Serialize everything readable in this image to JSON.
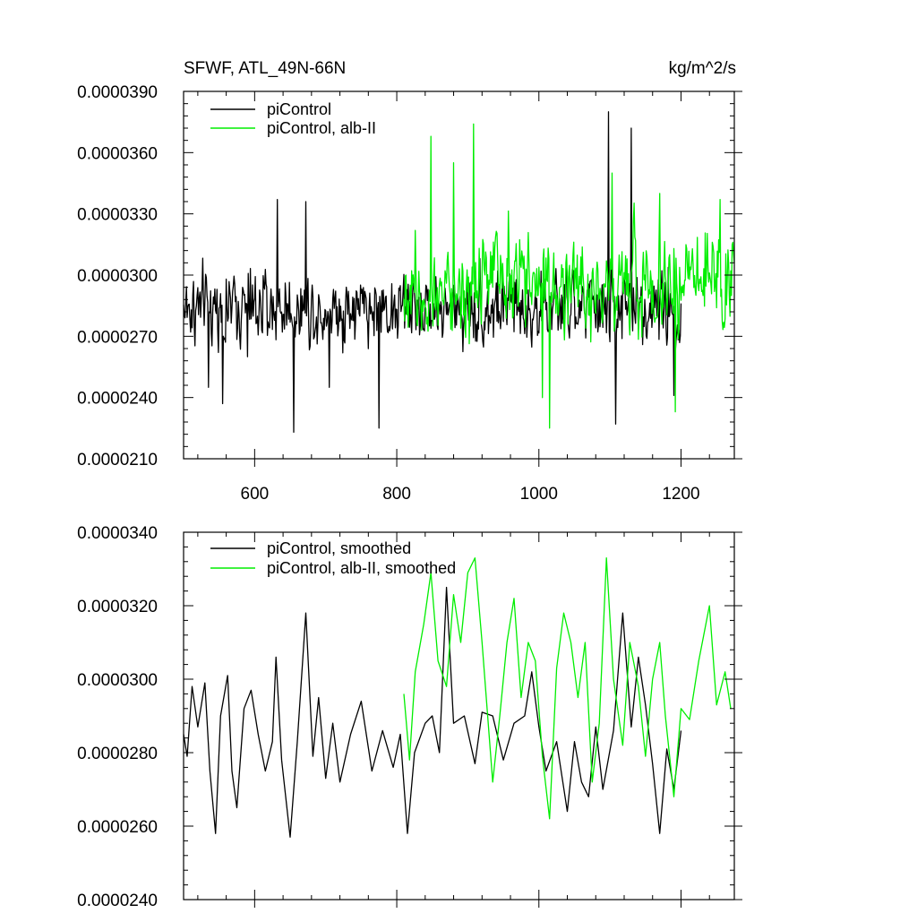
{
  "chart_data": [
    {
      "type": "line",
      "title": "SFWF, ATL_49N-66N",
      "units": "kg/m^2/s",
      "xlim": [
        500,
        1275
      ],
      "ylim": [
        2.1e-05,
        3.9e-05
      ],
      "x_ticks": [
        600,
        800,
        1000,
        1200
      ],
      "x_tick_labels": [
        "600",
        "800",
        "1000",
        "1200"
      ],
      "y_ticks": [
        2.1e-05,
        2.4e-05,
        2.7e-05,
        3e-05,
        3.3e-05,
        3.6e-05,
        3.9e-05
      ],
      "y_tick_labels": [
        "0.0000210",
        "0.0000240",
        "0.0000270",
        "0.0000300",
        "0.0000330",
        "0.0000360",
        "0.0000390"
      ],
      "grid": false,
      "legend_position": "top-left",
      "series": [
        {
          "name": "piControl",
          "color": "#000000",
          "x_start": 500,
          "x_end": 1200,
          "mean": 2.84e-05,
          "amplitude": 2.2e-06,
          "extremes": [
            [
              535,
              2.45e-05
            ],
            [
              555,
              2.37e-05
            ],
            [
              590,
              2.6e-05
            ],
            [
              632,
              3.37e-05
            ],
            [
              655,
              2.23e-05
            ],
            [
              672,
              3.36e-05
            ],
            [
              705,
              2.45e-05
            ],
            [
              775,
              2.25e-05
            ],
            [
              1098,
              3.8e-05
            ],
            [
              1108,
              2.27e-05
            ],
            [
              1130,
              3.72e-05
            ],
            [
              1190,
              2.41e-05
            ]
          ]
        },
        {
          "name": "piControl, alb-II",
          "color": "#00ee00",
          "x_start": 810,
          "x_end": 1275,
          "mean": 2.96e-05,
          "amplitude": 2.8e-06,
          "extremes": [
            [
              848,
              3.68e-05
            ],
            [
              880,
              3.55e-05
            ],
            [
              908,
              3.74e-05
            ],
            [
              1005,
              2.4e-05
            ],
            [
              1015,
              2.25e-05
            ],
            [
              1103,
              3.5e-05
            ],
            [
              1170,
              3.4e-05
            ],
            [
              1192,
              2.33e-05
            ],
            [
              1255,
              3.37e-05
            ]
          ]
        }
      ]
    },
    {
      "type": "line",
      "title": "",
      "xlim": [
        500,
        1275
      ],
      "ylim": [
        2.4e-05,
        3.4e-05
      ],
      "x_ticks": [
        600,
        800,
        1000,
        1200
      ],
      "x_tick_labels": [],
      "y_ticks": [
        2.4e-05,
        2.6e-05,
        2.8e-05,
        3e-05,
        3.2e-05,
        3.4e-05
      ],
      "y_tick_labels": [
        "0.0000240",
        "0.0000260",
        "0.0000280",
        "0.0000300",
        "0.0000320",
        "0.0000340"
      ],
      "grid": false,
      "legend_position": "top-left",
      "series": [
        {
          "name": "piControl, smoothed",
          "color": "#000000",
          "points": [
            [
              500,
              2.85e-05
            ],
            [
              505,
              2.79e-05
            ],
            [
              512,
              2.98e-05
            ],
            [
              520,
              2.87e-05
            ],
            [
              530,
              2.99e-05
            ],
            [
              537,
              2.75e-05
            ],
            [
              545,
              2.58e-05
            ],
            [
              552,
              2.9e-05
            ],
            [
              562,
              3.01e-05
            ],
            [
              568,
              2.75e-05
            ],
            [
              575,
              2.65e-05
            ],
            [
              585,
              2.92e-05
            ],
            [
              595,
              2.97e-05
            ],
            [
              605,
              2.85e-05
            ],
            [
              615,
              2.75e-05
            ],
            [
              625,
              2.83e-05
            ],
            [
              630,
              3.06e-05
            ],
            [
              638,
              2.78e-05
            ],
            [
              650,
              2.57e-05
            ],
            [
              660,
              2.83e-05
            ],
            [
              672,
              3.18e-05
            ],
            [
              682,
              2.79e-05
            ],
            [
              690,
              2.95e-05
            ],
            [
              700,
              2.73e-05
            ],
            [
              710,
              2.88e-05
            ],
            [
              720,
              2.72e-05
            ],
            [
              735,
              2.85e-05
            ],
            [
              750,
              2.94e-05
            ],
            [
              765,
              2.75e-05
            ],
            [
              780,
              2.86e-05
            ],
            [
              795,
              2.76e-05
            ],
            [
              805,
              2.85e-05
            ],
            [
              815,
              2.58e-05
            ],
            [
              825,
              2.8e-05
            ],
            [
              840,
              2.88e-05
            ],
            [
              850,
              2.9e-05
            ],
            [
              860,
              2.8e-05
            ],
            [
              870,
              3.25e-05
            ],
            [
              880,
              2.88e-05
            ],
            [
              895,
              2.9e-05
            ],
            [
              910,
              2.77e-05
            ],
            [
              920,
              2.91e-05
            ],
            [
              935,
              2.9e-05
            ],
            [
              950,
              2.78e-05
            ],
            [
              965,
              2.88e-05
            ],
            [
              980,
              2.9e-05
            ],
            [
              990,
              3.02e-05
            ],
            [
              1000,
              2.87e-05
            ],
            [
              1010,
              2.75e-05
            ],
            [
              1025,
              2.83e-05
            ],
            [
              1040,
              2.64e-05
            ],
            [
              1050,
              2.83e-05
            ],
            [
              1060,
              2.72e-05
            ],
            [
              1070,
              2.68e-05
            ],
            [
              1080,
              2.87e-05
            ],
            [
              1090,
              2.7e-05
            ],
            [
              1105,
              2.86e-05
            ],
            [
              1118,
              3.18e-05
            ],
            [
              1130,
              2.87e-05
            ],
            [
              1140,
              3.06e-05
            ],
            [
              1150,
              2.93e-05
            ],
            [
              1160,
              2.77e-05
            ],
            [
              1170,
              2.58e-05
            ],
            [
              1180,
              2.81e-05
            ],
            [
              1190,
              2.7e-05
            ],
            [
              1200,
              2.86e-05
            ]
          ]
        },
        {
          "name": "piControl, alb-II, smoothed",
          "color": "#00ee00",
          "points": [
            [
              810,
              2.96e-05
            ],
            [
              818,
              2.78e-05
            ],
            [
              826,
              3.02e-05
            ],
            [
              838,
              3.15e-05
            ],
            [
              848,
              3.29e-05
            ],
            [
              858,
              3.05e-05
            ],
            [
              870,
              2.98e-05
            ],
            [
              880,
              3.23e-05
            ],
            [
              890,
              3.1e-05
            ],
            [
              900,
              3.29e-05
            ],
            [
              910,
              3.33e-05
            ],
            [
              920,
              3.1e-05
            ],
            [
              935,
              2.72e-05
            ],
            [
              945,
              2.9e-05
            ],
            [
              955,
              3.1e-05
            ],
            [
              965,
              3.22e-05
            ],
            [
              975,
              2.95e-05
            ],
            [
              985,
              3.1e-05
            ],
            [
              995,
              3.05e-05
            ],
            [
              1005,
              2.79e-05
            ],
            [
              1015,
              2.62e-05
            ],
            [
              1025,
              3.03e-05
            ],
            [
              1035,
              3.18e-05
            ],
            [
              1045,
              3.1e-05
            ],
            [
              1055,
              2.95e-05
            ],
            [
              1065,
              3.1e-05
            ],
            [
              1075,
              2.72e-05
            ],
            [
              1085,
              2.88e-05
            ],
            [
              1095,
              3.33e-05
            ],
            [
              1105,
              3e-05
            ],
            [
              1118,
              2.82e-05
            ],
            [
              1128,
              3.1e-05
            ],
            [
              1140,
              2.98e-05
            ],
            [
              1150,
              2.79e-05
            ],
            [
              1160,
              3e-05
            ],
            [
              1170,
              3.1e-05
            ],
            [
              1178,
              2.9e-05
            ],
            [
              1190,
              2.68e-05
            ],
            [
              1200,
              2.92e-05
            ],
            [
              1212,
              2.89e-05
            ],
            [
              1225,
              3.05e-05
            ],
            [
              1240,
              3.2e-05
            ],
            [
              1250,
              2.93e-05
            ],
            [
              1262,
              3.02e-05
            ],
            [
              1270,
              2.92e-05
            ]
          ]
        }
      ]
    }
  ]
}
